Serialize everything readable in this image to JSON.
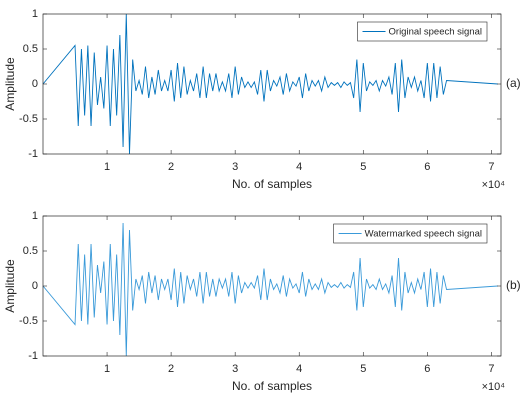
{
  "chart_data": [
    {
      "type": "line",
      "x_label": "No. of samples",
      "y_label": "Amplitude",
      "x_multiplier": "×10⁴",
      "panel_label": "(a)",
      "xlim": [
        0,
        71500
      ],
      "ylim": [
        -1,
        1
      ],
      "xticks": [
        {
          "value": 10000,
          "label": "1"
        },
        {
          "value": 20000,
          "label": "2"
        },
        {
          "value": 30000,
          "label": "3"
        },
        {
          "value": 40000,
          "label": "4"
        },
        {
          "value": 50000,
          "label": "5"
        },
        {
          "value": 60000,
          "label": "6"
        },
        {
          "value": 70000,
          "label": "7"
        }
      ],
      "yticks": [
        -1,
        -0.5,
        0,
        0.5,
        1
      ],
      "grid": false,
      "legend": "upper right",
      "x": [
        0,
        5000,
        5500,
        6000,
        6500,
        7000,
        7500,
        8000,
        8500,
        9000,
        9500,
        10000,
        10500,
        11000,
        11500,
        12000,
        12500,
        13000,
        13500,
        14000,
        14500,
        15000,
        15500,
        16000,
        16500,
        17000,
        17500,
        18000,
        18500,
        19000,
        19500,
        20000,
        20500,
        21000,
        21500,
        22000,
        22500,
        23000,
        23500,
        24000,
        24500,
        25000,
        25500,
        26000,
        26500,
        27000,
        27500,
        28000,
        28500,
        29000,
        29500,
        30000,
        30500,
        31000,
        31500,
        32000,
        32500,
        33000,
        33500,
        34000,
        34500,
        35000,
        35500,
        36000,
        36500,
        37000,
        37500,
        38000,
        38500,
        39000,
        39500,
        40000,
        40500,
        41000,
        41500,
        42000,
        42500,
        43000,
        43500,
        44000,
        44500,
        45000,
        45500,
        46000,
        46500,
        47000,
        47500,
        48000,
        48500,
        49000,
        49500,
        50000,
        50500,
        51000,
        51500,
        52000,
        52500,
        53000,
        53500,
        54000,
        54500,
        55000,
        55500,
        56000,
        56500,
        57000,
        57500,
        58000,
        58500,
        59000,
        59500,
        60000,
        60500,
        61000,
        61500,
        62000,
        62500,
        63000,
        71000
      ],
      "series": [
        {
          "name": "Original speech signal",
          "color": "#0072BD",
          "values": [
            0,
            0.55,
            -0.6,
            0.5,
            -0.45,
            0.55,
            -0.6,
            0.45,
            -0.3,
            0.1,
            -0.35,
            0.55,
            -0.6,
            0.5,
            -0.45,
            0.7,
            -0.9,
            1,
            -1,
            0.35,
            -0.1,
            0.05,
            -0.15,
            0.25,
            -0.2,
            0.1,
            -0.15,
            0.2,
            -0.1,
            0.05,
            -0.1,
            0.2,
            -0.25,
            0.3,
            -0.2,
            0.25,
            -0.15,
            0.05,
            -0.1,
            0.15,
            -0.2,
            0.25,
            -0.2,
            0.15,
            -0.1,
            0.15,
            -0.1,
            0.03,
            -0.1,
            0.15,
            -0.2,
            0.25,
            -0.15,
            0.1,
            -0.05,
            0.03,
            -0.05,
            0.03,
            -0.15,
            0.2,
            -0.25,
            0.2,
            -0.1,
            0.05,
            -0.03,
            0.1,
            -0.15,
            0.15,
            -0.1,
            0.03,
            -0.03,
            0.1,
            -0.2,
            0.15,
            -0.1,
            0.05,
            -0.03,
            0.05,
            -0.1,
            0.1,
            -0.05,
            0.02,
            -0.02,
            0.02,
            -0.05,
            0.03,
            -0.02,
            0.02,
            -0.2,
            0.35,
            -0.4,
            0.3,
            -0.1,
            0.03,
            -0.02,
            0.05,
            -0.1,
            0.05,
            -0.03,
            0.1,
            -0.15,
            0.3,
            -0.4,
            0.35,
            -0.2,
            0.1,
            -0.05,
            0.1,
            -0.1,
            0.05,
            -0.2,
            0.3,
            -0.25,
            0.3,
            -0.2,
            0.25,
            -0.15,
            0.05,
            0
          ]
        }
      ]
    },
    {
      "type": "line",
      "x_label": "No. of samples",
      "y_label": "Amplitude",
      "x_multiplier": "×10⁴",
      "panel_label": "(b)",
      "xlim": [
        0,
        71500
      ],
      "ylim": [
        -1,
        1
      ],
      "xticks": [
        {
          "value": 10000,
          "label": "1"
        },
        {
          "value": 20000,
          "label": "2"
        },
        {
          "value": 30000,
          "label": "3"
        },
        {
          "value": 40000,
          "label": "4"
        },
        {
          "value": 50000,
          "label": "5"
        },
        {
          "value": 60000,
          "label": "6"
        },
        {
          "value": 70000,
          "label": "7"
        }
      ],
      "yticks": [
        -1,
        -0.5,
        0,
        0.5,
        1
      ],
      "grid": false,
      "legend": "upper right",
      "x": [
        0,
        5000,
        5500,
        6000,
        6500,
        7000,
        7500,
        8000,
        8500,
        9000,
        9500,
        10000,
        10500,
        11000,
        11500,
        12000,
        12500,
        13000,
        13500,
        14000,
        14500,
        15000,
        15500,
        16000,
        16500,
        17000,
        17500,
        18000,
        18500,
        19000,
        19500,
        20000,
        20500,
        21000,
        21500,
        22000,
        22500,
        23000,
        23500,
        24000,
        24500,
        25000,
        25500,
        26000,
        26500,
        27000,
        27500,
        28000,
        28500,
        29000,
        29500,
        30000,
        30500,
        31000,
        31500,
        32000,
        32500,
        33000,
        33500,
        34000,
        34500,
        35000,
        35500,
        36000,
        36500,
        37000,
        37500,
        38000,
        38500,
        39000,
        39500,
        40000,
        40500,
        41000,
        41500,
        42000,
        42500,
        43000,
        43500,
        44000,
        44500,
        45000,
        45500,
        46000,
        46500,
        47000,
        47500,
        48000,
        48500,
        49000,
        49500,
        50000,
        50500,
        51000,
        51500,
        52000,
        52500,
        53000,
        53500,
        54000,
        54500,
        55000,
        55500,
        56000,
        56500,
        57000,
        57500,
        58000,
        58500,
        59000,
        59500,
        60000,
        60500,
        61000,
        61500,
        62000,
        62500,
        63000,
        71000
      ],
      "series": [
        {
          "name": "Watermarked speech signal",
          "color": "#3A9AD9",
          "values": [
            0,
            -0.55,
            0.6,
            -0.5,
            0.45,
            -0.55,
            0.6,
            -0.45,
            0.3,
            -0.1,
            0.35,
            -0.55,
            0.6,
            -0.5,
            0.45,
            -0.7,
            0.9,
            -1,
            0.8,
            -0.35,
            0.1,
            -0.05,
            0.15,
            -0.25,
            0.2,
            -0.1,
            0.15,
            -0.2,
            0.1,
            -0.05,
            0.1,
            -0.2,
            0.25,
            -0.3,
            0.2,
            -0.25,
            0.15,
            -0.05,
            0.1,
            -0.15,
            0.2,
            -0.25,
            0.2,
            -0.15,
            0.1,
            -0.15,
            0.1,
            -0.03,
            0.1,
            -0.15,
            0.2,
            -0.25,
            0.15,
            -0.1,
            0.05,
            -0.03,
            0.05,
            -0.03,
            0.15,
            -0.2,
            0.25,
            -0.2,
            0.1,
            -0.05,
            0.03,
            -0.1,
            0.15,
            -0.15,
            0.1,
            -0.03,
            0.03,
            -0.1,
            0.2,
            -0.15,
            0.1,
            -0.05,
            0.03,
            -0.05,
            0.1,
            -0.1,
            0.05,
            -0.02,
            0.02,
            -0.02,
            0.05,
            -0.03,
            0.02,
            -0.02,
            0.2,
            -0.35,
            0.4,
            -0.3,
            0.1,
            -0.03,
            0.02,
            -0.05,
            0.1,
            -0.05,
            0.03,
            -0.1,
            0.15,
            -0.3,
            0.4,
            -0.35,
            0.2,
            -0.1,
            0.05,
            -0.1,
            0.1,
            -0.05,
            0.2,
            -0.3,
            0.25,
            -0.3,
            0.2,
            -0.25,
            0.15,
            -0.05,
            0
          ]
        }
      ]
    }
  ]
}
